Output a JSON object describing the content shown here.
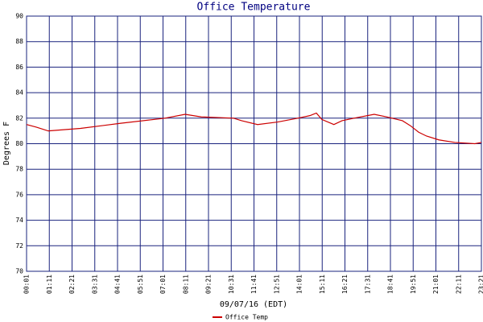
{
  "chart_data": {
    "type": "line",
    "title": "Office Temperature",
    "y_label": "Degrees F",
    "x_label": "09/07/16 (EDT)",
    "x": [
      "00:01",
      "00:31",
      "01:08",
      "02:47",
      "03:49",
      "04:51",
      "07:07",
      "08:09",
      "08:59",
      "10:38",
      "11:03",
      "11:52",
      "12:54",
      "13:56",
      "14:33",
      "14:53",
      "15:10",
      "15:47",
      "16:12",
      "16:49",
      "17:51",
      "18:29",
      "19:18",
      "19:43",
      "20:08",
      "20:32",
      "21:10",
      "21:59",
      "23:01",
      "23:21"
    ],
    "series": [
      {
        "name": "Office Temp",
        "color": "#cc0000",
        "values": [
          81.5,
          81.3,
          81.0,
          81.2,
          81.4,
          81.6,
          82.0,
          82.3,
          82.1,
          82.0,
          81.8,
          81.5,
          81.7,
          82.0,
          82.2,
          82.4,
          81.9,
          81.5,
          81.8,
          82.0,
          82.3,
          82.1,
          81.8,
          81.4,
          80.9,
          80.6,
          80.3,
          80.1,
          80.0,
          80.1
        ]
      }
    ],
    "xlim": [
      "00:01",
      "23:21"
    ],
    "xticks": [
      "00:01",
      "01:11",
      "02:21",
      "03:31",
      "04:41",
      "05:51",
      "07:01",
      "08:11",
      "09:21",
      "10:31",
      "11:41",
      "12:51",
      "14:01",
      "15:11",
      "16:21",
      "17:31",
      "18:41",
      "19:51",
      "21:01",
      "22:11",
      "23:21"
    ],
    "ylim": [
      70,
      90
    ],
    "yticks": [
      70,
      72,
      74,
      76,
      78,
      80,
      82,
      84,
      86,
      88,
      90
    ],
    "grid": true,
    "grid_color": "#1a237e"
  }
}
